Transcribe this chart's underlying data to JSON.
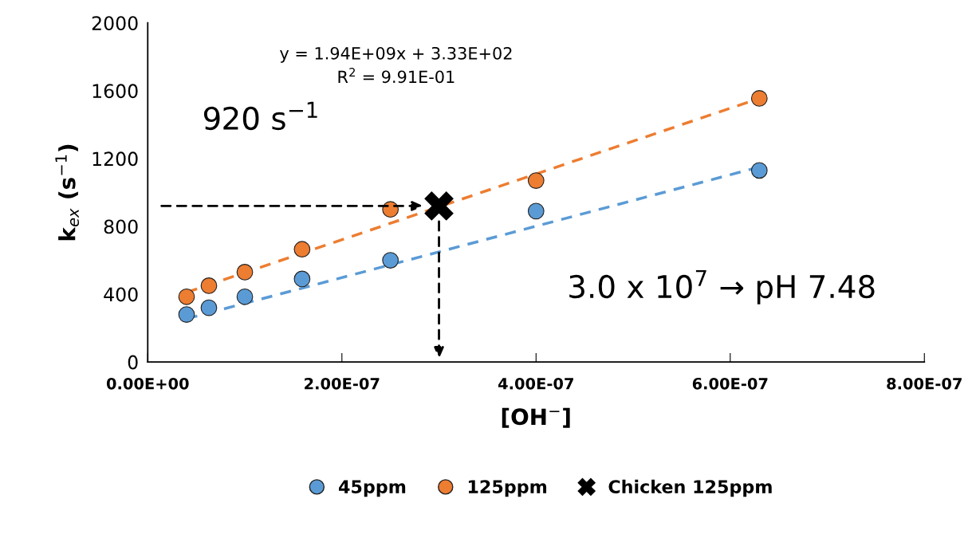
{
  "chart_data": {
    "type": "scatter",
    "xlabel": "[OH$^{−}$]",
    "ylabel": "k$_{ex}$ (s$^{−1}$)",
    "xlim": [
      0,
      8e-07
    ],
    "xticks": [
      {
        "value": 0,
        "label": "0.00E+00"
      },
      {
        "value": 2e-07,
        "label": "2.00E-07"
      },
      {
        "value": 4e-07,
        "label": "4.00E-07"
      },
      {
        "value": 6e-07,
        "label": "6.00E-07"
      },
      {
        "value": 8e-07,
        "label": "8.00E-07"
      }
    ],
    "ylim": [
      0,
      2000
    ],
    "yticks": [
      0,
      400,
      800,
      1200,
      1600,
      2000
    ],
    "grid": false,
    "legend": "bottom",
    "series": [
      {
        "type": "line",
        "color": "#5b9bd5",
        "line_style": "dashed",
        "marker": "none",
        "x": [
          4e-08,
          6.3e-07
        ],
        "values": [
          255,
          1150
        ]
      },
      {
        "type": "line",
        "color": "#ed7d31",
        "line_style": "dashed",
        "marker": "none",
        "x": [
          4e-08,
          6.3e-07
        ],
        "values": [
          411,
          1555
        ]
      },
      {
        "name": "45ppm",
        "color": "#5b9bd5",
        "marker": "circle",
        "x": [
          4e-08,
          6.3e-08,
          1e-07,
          1.59e-07,
          2.5e-07,
          4e-07,
          6.3e-07
        ],
        "values": [
          280,
          320,
          385,
          490,
          600,
          890,
          1130
        ]
      },
      {
        "name": "125ppm",
        "color": "#ed7d31",
        "marker": "circle",
        "x": [
          4e-08,
          6.3e-08,
          1e-07,
          1.59e-07,
          2.5e-07,
          4e-07,
          6.3e-07
        ],
        "values": [
          385,
          450,
          530,
          665,
          900,
          1070,
          1555
        ]
      },
      {
        "name": "Chicken 125ppm",
        "color": "#000000",
        "marker": "cross",
        "x": [
          3e-07
        ],
        "values": [
          920
        ]
      }
    ],
    "annotations": [
      "y = 1.94E+09x + 3.33E+02\nR$^{2}$ = 9.91E-01",
      "920 s$^{−1}$",
      "3.0 x 10$^{7}$ → pH 7.48"
    ]
  }
}
